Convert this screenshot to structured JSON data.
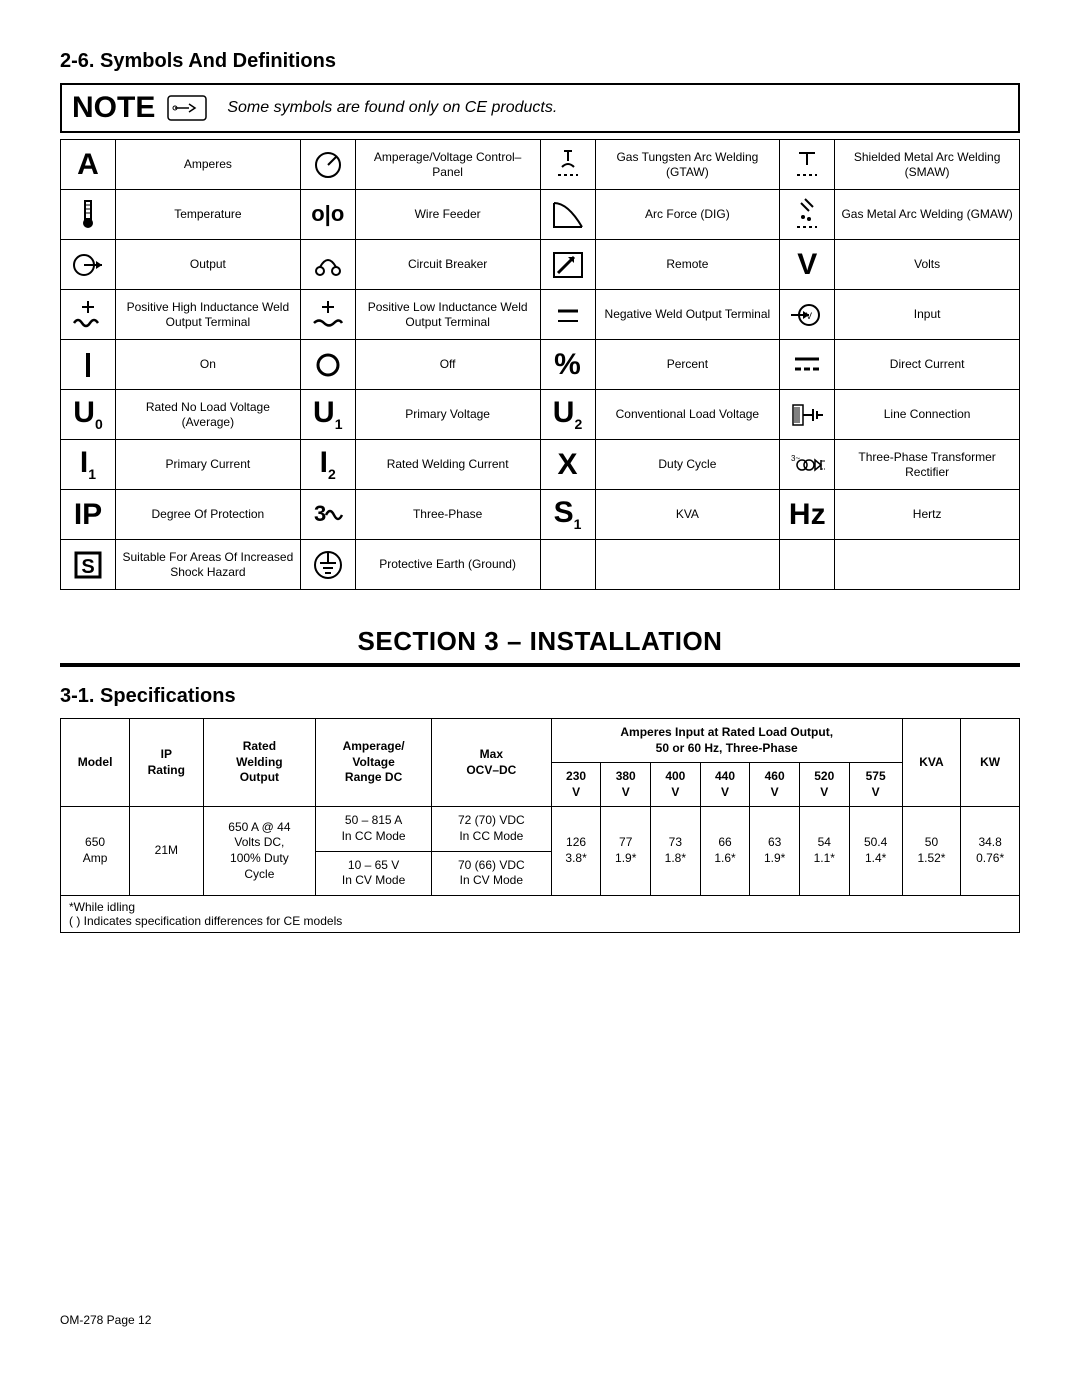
{
  "heading1": "2-6.  Symbols And Definitions",
  "note": {
    "label": "NOTE",
    "text": "Some symbols are found only on CE products."
  },
  "symbols": [
    {
      "sym": "A",
      "cls": "big",
      "desc": "Amperes"
    },
    {
      "svg": "dial",
      "desc": "Amperage/Voltage Control–Panel"
    },
    {
      "svg": "gtaw",
      "desc": "Gas Tungsten Arc Welding (GTAW)"
    },
    {
      "svg": "smaw",
      "desc": "Shielded Metal Arc Welding (SMAW)"
    },
    {
      "svg": "thermo",
      "desc": "Temperature"
    },
    {
      "sym": "o|o",
      "cls": "med",
      "desc": "Wire Feeder"
    },
    {
      "svg": "arcforce",
      "desc": "Arc Force (DIG)"
    },
    {
      "svg": "gmaw",
      "desc": "Gas Metal Arc Welding (GMAW)"
    },
    {
      "svg": "output",
      "desc": "Output"
    },
    {
      "svg": "cbreaker",
      "desc": "Circuit Breaker"
    },
    {
      "svg": "remote",
      "desc": "Remote"
    },
    {
      "sym": "V",
      "cls": "big",
      "desc": "Volts"
    },
    {
      "svg": "poshigh",
      "desc": "Positive High Inductance Weld Output Terminal"
    },
    {
      "svg": "poslow",
      "desc": "Positive Low Inductance Weld Output Terminal"
    },
    {
      "svg": "negterm",
      "desc": "Negative Weld Output Terminal"
    },
    {
      "svg": "input",
      "desc": "Input"
    },
    {
      "svg": "onbar",
      "desc": "On"
    },
    {
      "svg": "offcirc",
      "desc": "Off"
    },
    {
      "sym": "%",
      "cls": "big",
      "desc": "Percent"
    },
    {
      "svg": "dc",
      "desc": "Direct Current"
    },
    {
      "sym": "U<sub>0</sub>",
      "cls": "big",
      "desc": "Rated No Load Voltage (Average)"
    },
    {
      "sym": "U<sub>1</sub>",
      "cls": "big",
      "desc": "Primary Voltage"
    },
    {
      "sym": "U<sub>2</sub>",
      "cls": "big",
      "desc": "Conventional Load Voltage"
    },
    {
      "svg": "lineconn",
      "desc": "Line Connection"
    },
    {
      "sym": "I<sub>1</sub>",
      "cls": "big",
      "desc": "Primary Current"
    },
    {
      "sym": "I<sub>2</sub>",
      "cls": "big",
      "desc": "Rated Welding Current"
    },
    {
      "sym": "X",
      "cls": "big",
      "desc": "Duty Cycle"
    },
    {
      "svg": "threetrans",
      "desc": "Three-Phase Transformer Rectifier"
    },
    {
      "sym": "IP",
      "cls": "big",
      "desc": "Degree Of Protection"
    },
    {
      "svg": "threephase",
      "desc": "Three-Phase"
    },
    {
      "sym": "S<sub>1</sub>",
      "cls": "big",
      "desc": "KVA"
    },
    {
      "sym": "Hz",
      "cls": "big",
      "desc": "Hertz"
    },
    {
      "svg": "sbox",
      "desc": "Suitable For Areas Of Increased Shock Hazard"
    },
    {
      "svg": "ground",
      "desc": "Protective Earth (Ground)"
    },
    {
      "sym": "",
      "desc": ""
    },
    {
      "sym": "",
      "desc": ""
    }
  ],
  "section_title": "SECTION 3 – INSTALLATION",
  "heading2": "3-1.  Specifications",
  "specs": {
    "super_header": "Amperes Input at Rated Load Output, 50 or 60 Hz, Three-Phase",
    "headers": [
      "Model",
      "IP Rating",
      "Rated Welding Output",
      "Amperage/ Voltage Range DC",
      "Max OCV–DC",
      "230 V",
      "380 V",
      "400 V",
      "440 V",
      "460 V",
      "520 V",
      "575 V",
      "KVA",
      "KW"
    ],
    "row": {
      "model": "650 Amp",
      "ip": "21M",
      "rated": "650 A @ 44 Volts DC, 100% Duty Cycle",
      "range1": "50 – 815 A In CC Mode",
      "range2": "10 – 65 V In CV Mode",
      "ocv1": "72 (70) VDC In CC Mode",
      "ocv2": "70 (66) VDC In CV Mode",
      "v230": "126 3.8*",
      "v380": "77 1.9*",
      "v400": "73 1.8*",
      "v440": "66 1.6*",
      "v460": "63 1.9*",
      "v520": "54 1.1*",
      "v575": "50.4 1.4*",
      "kva": "50 1.52*",
      "kw": "34.8 0.76*"
    },
    "note1": "*While idling",
    "note2": "( ) Indicates specification differences for CE models"
  },
  "footer": "OM-278 Page 12"
}
